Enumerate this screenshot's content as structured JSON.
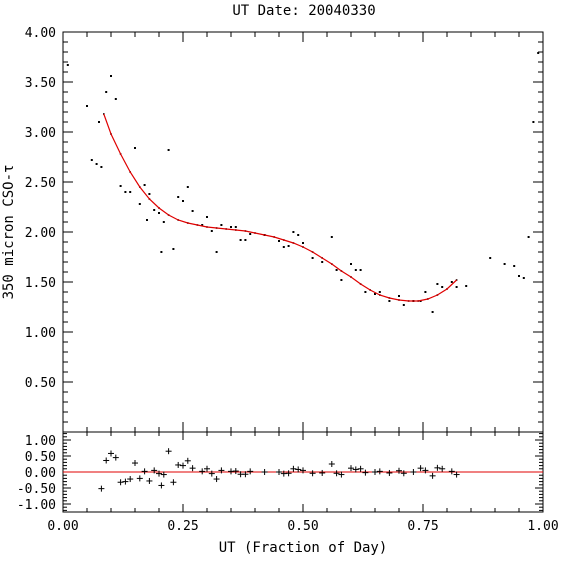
{
  "chart_data": [
    {
      "type": "scatter",
      "title": "UT Date: 20040330",
      "ylabel": "350 micron CSO-τ",
      "xlim": [
        0.0,
        1.0
      ],
      "ylim": [
        0.0,
        4.0
      ],
      "yticks": [
        "0.50",
        "1.00",
        "1.50",
        "2.00",
        "2.50",
        "3.00",
        "3.50",
        "4.00"
      ],
      "grid": false,
      "series": [
        {
          "marker": "dot",
          "x": [
            0.01,
            0.05,
            0.06,
            0.07,
            0.075,
            0.08,
            0.09,
            0.1,
            0.11,
            0.12,
            0.13,
            0.14,
            0.15,
            0.16,
            0.17,
            0.175,
            0.18,
            0.19,
            0.2,
            0.205,
            0.21,
            0.22,
            0.23,
            0.24,
            0.25,
            0.26,
            0.27,
            0.29,
            0.3,
            0.31,
            0.32,
            0.33,
            0.35,
            0.36,
            0.37,
            0.38,
            0.39,
            0.42,
            0.45,
            0.46,
            0.47,
            0.48,
            0.49,
            0.5,
            0.52,
            0.54,
            0.56,
            0.57,
            0.58,
            0.6,
            0.61,
            0.62,
            0.63,
            0.65,
            0.66,
            0.68,
            0.7,
            0.71,
            0.73,
            0.745,
            0.755,
            0.77,
            0.78,
            0.79,
            0.81,
            0.82,
            0.84,
            0.89,
            0.92,
            0.94,
            0.95,
            0.96,
            0.97,
            0.98,
            0.99
          ],
          "y": [
            3.67,
            3.26,
            2.72,
            2.68,
            3.1,
            2.65,
            3.4,
            3.56,
            3.33,
            2.46,
            2.4,
            2.4,
            2.84,
            2.28,
            2.47,
            2.12,
            2.38,
            2.22,
            2.19,
            1.8,
            2.1,
            2.82,
            1.83,
            2.35,
            2.31,
            2.45,
            2.21,
            2.07,
            2.15,
            2.01,
            1.8,
            2.07,
            2.05,
            2.05,
            1.92,
            1.92,
            1.98,
            1.97,
            1.91,
            1.85,
            1.86,
            2.0,
            1.97,
            1.89,
            1.74,
            1.7,
            1.95,
            1.62,
            1.52,
            1.68,
            1.62,
            1.62,
            1.4,
            1.38,
            1.4,
            1.31,
            1.36,
            1.27,
            1.31,
            1.31,
            1.4,
            1.2,
            1.48,
            1.45,
            1.5,
            1.45,
            1.46,
            1.74,
            1.68,
            1.66,
            1.56,
            1.54,
            1.95,
            3.1,
            3.79
          ]
        }
      ],
      "fit": {
        "color": "#e00000",
        "x": [
          0.085,
          0.1,
          0.12,
          0.14,
          0.16,
          0.18,
          0.2,
          0.22,
          0.24,
          0.26,
          0.28,
          0.3,
          0.32,
          0.34,
          0.36,
          0.38,
          0.4,
          0.42,
          0.44,
          0.46,
          0.48,
          0.5,
          0.52,
          0.54,
          0.56,
          0.58,
          0.6,
          0.62,
          0.64,
          0.66,
          0.68,
          0.7,
          0.72,
          0.74,
          0.76,
          0.78,
          0.8,
          0.82
        ],
        "y": [
          3.18,
          2.98,
          2.78,
          2.6,
          2.45,
          2.33,
          2.24,
          2.17,
          2.12,
          2.09,
          2.07,
          2.05,
          2.04,
          2.03,
          2.02,
          2.01,
          1.99,
          1.97,
          1.95,
          1.92,
          1.89,
          1.85,
          1.8,
          1.74,
          1.68,
          1.61,
          1.55,
          1.48,
          1.42,
          1.37,
          1.34,
          1.32,
          1.31,
          1.31,
          1.33,
          1.37,
          1.43,
          1.52
        ]
      }
    },
    {
      "type": "scatter",
      "xlabel": "UT (Fraction of Day)",
      "xlim": [
        0.0,
        1.0
      ],
      "ylim": [
        -1.25,
        1.25
      ],
      "xticks": [
        "0.00",
        "0.25",
        "0.50",
        "0.75",
        "1.00"
      ],
      "yticks": [
        "-1.00",
        "-0.50",
        "0.00",
        "0.50",
        "1.00"
      ],
      "grid": false,
      "zero_line_color": "#e00000",
      "series": [
        {
          "marker": "plus",
          "x": [
            0.08,
            0.09,
            0.1,
            0.11,
            0.12,
            0.13,
            0.14,
            0.15,
            0.16,
            0.17,
            0.18,
            0.19,
            0.2,
            0.205,
            0.21,
            0.22,
            0.23,
            0.24,
            0.25,
            0.26,
            0.27,
            0.29,
            0.3,
            0.31,
            0.32,
            0.33,
            0.35,
            0.36,
            0.37,
            0.38,
            0.39,
            0.42,
            0.45,
            0.46,
            0.47,
            0.48,
            0.49,
            0.5,
            0.52,
            0.54,
            0.56,
            0.57,
            0.58,
            0.6,
            0.61,
            0.62,
            0.63,
            0.65,
            0.66,
            0.68,
            0.7,
            0.71,
            0.73,
            0.745,
            0.755,
            0.77,
            0.78,
            0.79,
            0.81,
            0.82
          ],
          "y": [
            -0.52,
            0.36,
            0.58,
            0.45,
            -0.32,
            -0.3,
            -0.22,
            0.28,
            -0.2,
            0.02,
            -0.28,
            0.05,
            -0.05,
            -0.42,
            -0.08,
            0.65,
            -0.32,
            0.22,
            0.2,
            0.35,
            0.12,
            0.02,
            0.1,
            -0.05,
            -0.22,
            0.05,
            0.02,
            0.03,
            -0.07,
            -0.07,
            0.02,
            0.0,
            0.0,
            -0.05,
            -0.04,
            0.1,
            0.08,
            0.05,
            -0.04,
            -0.03,
            0.25,
            -0.04,
            -0.08,
            0.12,
            0.08,
            0.1,
            -0.02,
            0.0,
            0.02,
            -0.03,
            0.04,
            -0.04,
            0.0,
            0.12,
            0.05,
            -0.12,
            0.13,
            0.1,
            0.02,
            -0.08
          ]
        }
      ]
    }
  ]
}
